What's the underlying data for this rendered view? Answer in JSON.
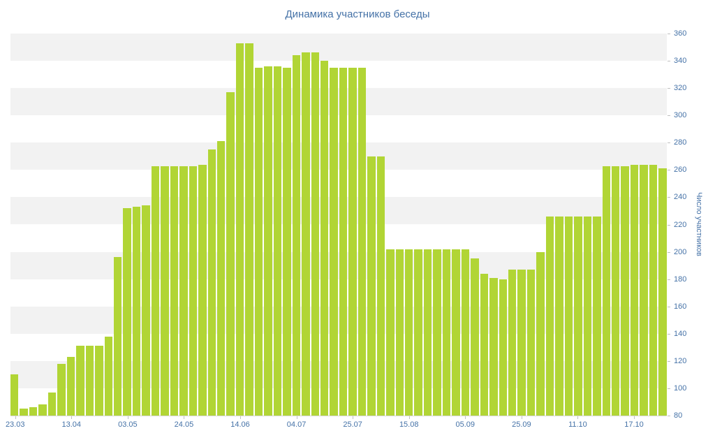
{
  "chart_data": {
    "type": "bar",
    "title": "Динамика участников беседы",
    "xlabel": "",
    "ylabel": "Число участников",
    "ylim": [
      80,
      360
    ],
    "y_tick_step": 20,
    "grid": "alternating horizontal shaded bands every 20 units",
    "legend": "none",
    "values": [
      110,
      85,
      86,
      88,
      97,
      118,
      123,
      131,
      131,
      131,
      138,
      196,
      232,
      233,
      234,
      263,
      263,
      263,
      263,
      263,
      264,
      275,
      281,
      317,
      353,
      353,
      335,
      336,
      336,
      335,
      344,
      346,
      346,
      340,
      335,
      335,
      335,
      335,
      270,
      270,
      202,
      202,
      202,
      202,
      202,
      202,
      202,
      202,
      202,
      195,
      184,
      181,
      180,
      187,
      187,
      187,
      200,
      226,
      226,
      226,
      226,
      226,
      226,
      263,
      263,
      263,
      264,
      264,
      264,
      261
    ],
    "x_ticks": [
      {
        "index": 0,
        "label": "23.03"
      },
      {
        "index": 6,
        "label": "13.04"
      },
      {
        "index": 12,
        "label": "03.05"
      },
      {
        "index": 18,
        "label": "24.05"
      },
      {
        "index": 24,
        "label": "14.06"
      },
      {
        "index": 30,
        "label": "04.07"
      },
      {
        "index": 36,
        "label": "25.07"
      },
      {
        "index": 42,
        "label": "15.08"
      },
      {
        "index": 48,
        "label": "05.09"
      },
      {
        "index": 54,
        "label": "25.09"
      },
      {
        "index": 60,
        "label": "11.10"
      },
      {
        "index": 66,
        "label": "17.10"
      }
    ],
    "colors": {
      "bar": "#b1d535",
      "band": "#f2f2f2",
      "background": "#ffffff",
      "text": "#4572a7",
      "axis": "#d6d6d6",
      "tick": "#c0c0c0"
    }
  }
}
